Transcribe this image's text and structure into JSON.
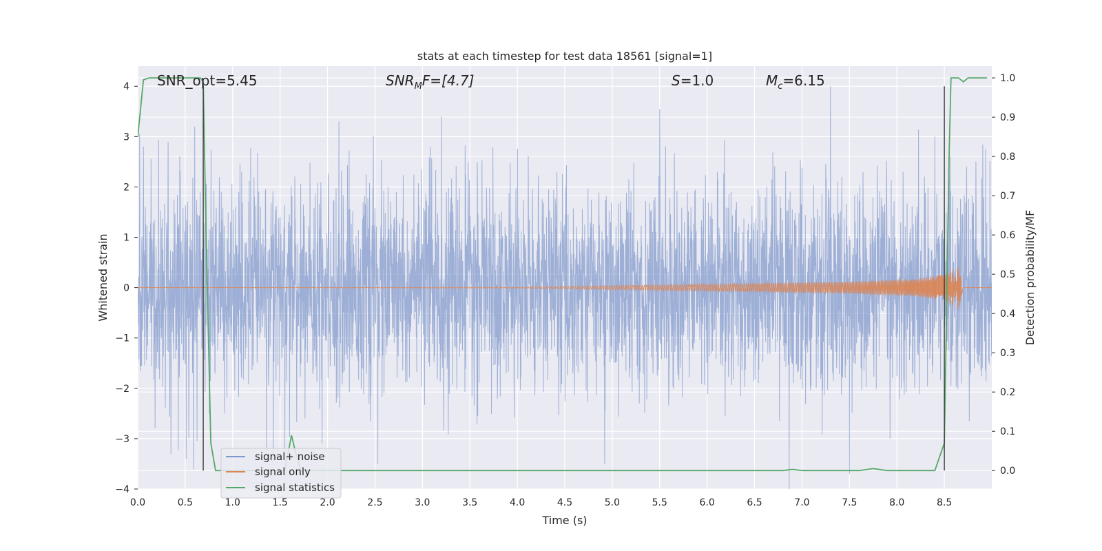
{
  "chart_data": {
    "type": "line",
    "title": "stats at each timestep for test data 18561 [signal=1]",
    "xlabel": "Time (s)",
    "ylabel": "Whitened strain",
    "y2label": "Detection probability/MF",
    "xlim": [
      0,
      9.0
    ],
    "ylim": [
      -4.0,
      4.4
    ],
    "y2lim": [
      -0.047,
      1.03
    ],
    "xticks": [
      0.0,
      0.5,
      1.0,
      1.5,
      2.0,
      2.5,
      3.0,
      3.5,
      4.0,
      4.5,
      5.0,
      5.5,
      6.0,
      6.5,
      7.0,
      7.5,
      8.0,
      8.5
    ],
    "xtick_labels": [
      "0.0",
      "0.5",
      "1.0",
      "1.5",
      "2.0",
      "2.5",
      "3.0",
      "3.5",
      "4.0",
      "4.5",
      "5.0",
      "5.5",
      "6.0",
      "6.5",
      "7.0",
      "7.5",
      "8.0",
      "8.5"
    ],
    "yticks": [
      -4,
      -3,
      -2,
      -1,
      0,
      1,
      2,
      3,
      4
    ],
    "ytick_labels": [
      "−4",
      "−3",
      "−2",
      "−1",
      "0",
      "1",
      "2",
      "3",
      "4"
    ],
    "y2ticks": [
      0.0,
      0.1,
      0.2,
      0.3,
      0.4,
      0.5,
      0.6,
      0.7,
      0.8,
      0.9,
      1.0
    ],
    "y2tick_labels": [
      "0.0",
      "0.1",
      "0.2",
      "0.3",
      "0.4",
      "0.5",
      "0.6",
      "0.7",
      "0.8",
      "0.9",
      "1.0"
    ],
    "grid": true,
    "legend_position": "bottom-left",
    "annotations": {
      "snr_opt": "SNR_opt=5.45",
      "snr_mf_main": "SNR",
      "snr_mf_sub": "M",
      "snr_mf_rest": "F=[4.7]",
      "s_main": "S",
      "s_rest": "=1.0",
      "mc_main": "M",
      "mc_sub": "c",
      "mc_rest": "=6.15"
    },
    "vertical_lines": [
      0.69,
      8.5
    ],
    "series": [
      {
        "name": "signal+ noise",
        "color": "#7f98cb",
        "axis": "left",
        "style": "noise",
        "amplitude_sigma": 1.0,
        "peaks": [
          [
            0.06,
            2.8
          ],
          [
            0.35,
            -3.3
          ],
          [
            0.6,
            3.2
          ],
          [
            0.51,
            -3.4
          ],
          [
            1.55,
            -3.3
          ],
          [
            2.12,
            3.3
          ],
          [
            2.53,
            -3.5
          ],
          [
            3.2,
            3.4
          ],
          [
            4.92,
            -3.5
          ],
          [
            5.5,
            3.55
          ],
          [
            7.3,
            4.0
          ],
          [
            7.5,
            -3.7
          ],
          [
            8.4,
            3.0
          ],
          [
            8.56,
            2.6
          ]
        ]
      },
      {
        "name": "signal only",
        "color": "#dd8452",
        "axis": "left",
        "style": "chirp",
        "x": [
          0.0,
          4.0,
          6.0,
          7.5,
          8.2,
          8.5,
          8.65,
          8.7,
          9.0
        ],
        "envelope": [
          0.0,
          0.01,
          0.07,
          0.12,
          0.18,
          0.26,
          0.45,
          0.0,
          0.0
        ]
      },
      {
        "name": "signal statistics",
        "color": "#55a868",
        "axis": "right",
        "x": [
          0.0,
          0.06,
          0.12,
          0.3,
          0.6,
          0.66,
          0.69,
          0.72,
          0.77,
          0.82,
          1.55,
          1.62,
          1.66,
          1.72,
          6.8,
          6.9,
          7.0,
          7.6,
          7.75,
          7.9,
          8.0,
          8.4,
          8.5,
          8.55,
          8.57,
          8.65,
          8.7,
          8.75,
          8.82,
          8.95
        ],
        "values": [
          0.85,
          0.995,
          1.0,
          1.0,
          1.0,
          1.0,
          0.99,
          0.6,
          0.07,
          0.0,
          0.0,
          0.09,
          0.05,
          0.0,
          0.0,
          0.003,
          0.0,
          0.0,
          0.005,
          0.0,
          0.0,
          0.0,
          0.07,
          0.8,
          1.0,
          1.0,
          0.99,
          1.0,
          1.0,
          1.0
        ]
      }
    ]
  }
}
